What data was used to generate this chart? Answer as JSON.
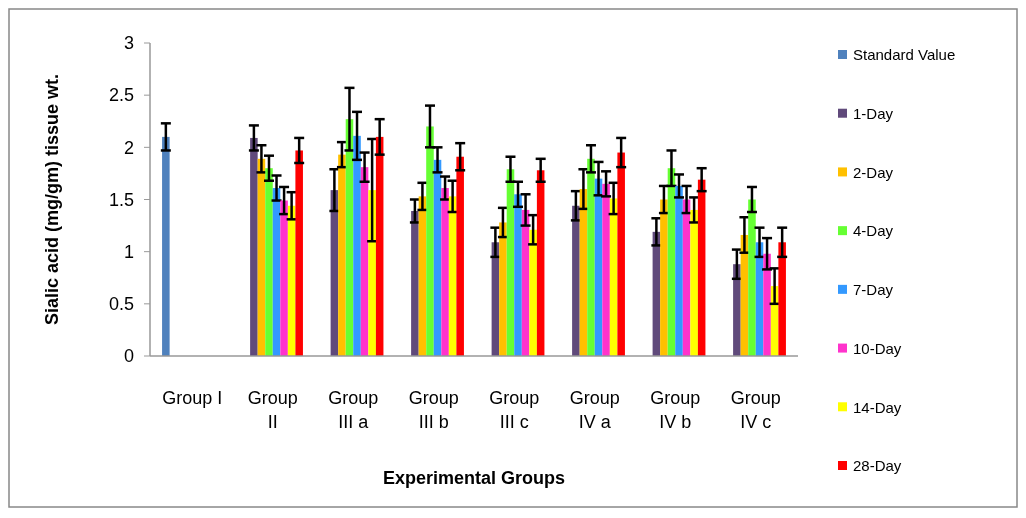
{
  "chart_data": {
    "type": "bar",
    "xlabel": "Experimental Groups",
    "ylabel": "Sialic acid (mg/gm) tissue wt.",
    "categories": [
      "Group I",
      "Group II",
      "Group III a",
      "Group III b",
      "Group III c",
      "Group IV a",
      "Group IV b",
      "Group IV c"
    ],
    "series": [
      {
        "name": "Standard Value",
        "color": "#4f81bd",
        "values": [
          2.1,
          null,
          null,
          null,
          null,
          null,
          null,
          null
        ],
        "errors": [
          0.13,
          null,
          null,
          null,
          null,
          null,
          null,
          null
        ]
      },
      {
        "name": "1-Day",
        "color": "#604a7b",
        "values": [
          null,
          2.09,
          1.59,
          1.39,
          1.09,
          1.44,
          1.19,
          0.88
        ],
        "errors": [
          null,
          0.12,
          0.2,
          0.11,
          0.14,
          0.14,
          0.13,
          0.14
        ]
      },
      {
        "name": "2-Day",
        "color": "#ffc000",
        "values": [
          null,
          1.89,
          1.93,
          1.53,
          1.28,
          1.6,
          1.5,
          1.16
        ],
        "errors": [
          null,
          0.13,
          0.12,
          0.13,
          0.14,
          0.19,
          0.13,
          0.17
        ]
      },
      {
        "name": "4-Day",
        "color": "#66ff33",
        "values": [
          null,
          1.8,
          2.27,
          2.2,
          1.79,
          1.89,
          1.8,
          1.5
        ],
        "errors": [
          null,
          0.12,
          0.3,
          0.2,
          0.12,
          0.13,
          0.17,
          0.12
        ]
      },
      {
        "name": "7-Day",
        "color": "#3399ff",
        "values": [
          null,
          1.61,
          2.11,
          1.88,
          1.55,
          1.7,
          1.63,
          1.09
        ],
        "errors": [
          null,
          0.12,
          0.23,
          0.12,
          0.12,
          0.16,
          0.11,
          0.14
        ]
      },
      {
        "name": "10-Day",
        "color": "#ff33cc",
        "values": [
          null,
          1.49,
          1.81,
          1.61,
          1.4,
          1.65,
          1.5,
          0.98
        ],
        "errors": [
          null,
          0.13,
          0.14,
          0.11,
          0.15,
          0.12,
          0.13,
          0.15
        ]
      },
      {
        "name": "14-Day",
        "color": "#ffff00",
        "values": [
          null,
          1.44,
          1.59,
          1.53,
          1.21,
          1.51,
          1.4,
          0.67
        ],
        "errors": [
          null,
          0.13,
          0.49,
          0.15,
          0.14,
          0.15,
          0.12,
          0.17
        ]
      },
      {
        "name": "28-Day",
        "color": "#ff0000",
        "values": [
          null,
          1.97,
          2.1,
          1.91,
          1.78,
          1.95,
          1.69,
          1.09
        ],
        "errors": [
          null,
          0.12,
          0.17,
          0.13,
          0.11,
          0.14,
          0.11,
          0.14
        ]
      }
    ],
    "ylim": [
      0,
      3
    ],
    "yticks": [
      0,
      0.5,
      1,
      1.5,
      2,
      2.5,
      3
    ],
    "grid": false,
    "legend": "right"
  }
}
